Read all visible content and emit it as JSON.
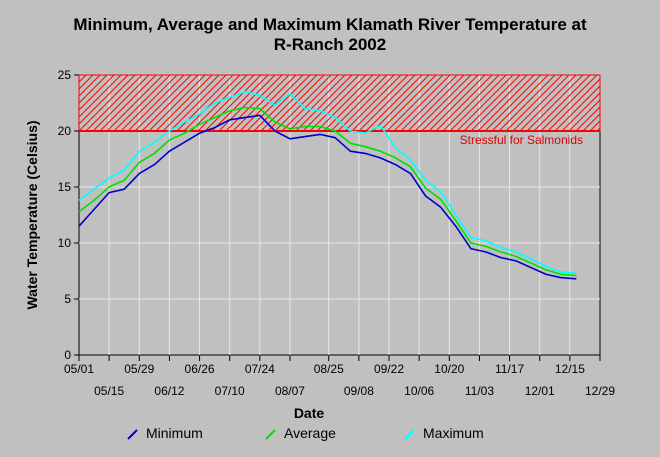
{
  "chart_data": {
    "type": "line",
    "title": "Minimum, Average and Maximum Klamath River Temperature at",
    "subtitle": "R-Ranch 2002",
    "xlabel": "Date",
    "ylabel": "Water Temperature (Celsius)",
    "ylim": [
      0,
      25
    ],
    "yticks": [
      0,
      5,
      10,
      15,
      20,
      25
    ],
    "grid": true,
    "legend_position": "bottom",
    "x_ticks_top": [
      "05/01",
      "05/29",
      "06/26",
      "07/24",
      "08/25",
      "09/22",
      "10/20",
      "11/17",
      "12/15"
    ],
    "x_ticks_bottom": [
      "05/15",
      "06/12",
      "07/10",
      "08/07",
      "09/08",
      "10/06",
      "11/03",
      "12/01",
      "12/29"
    ],
    "threshold": {
      "value": 20,
      "label": "Stressful for Salmonids",
      "color": "#ff0000"
    },
    "x": [
      "05/01",
      "05/08",
      "05/15",
      "05/22",
      "05/29",
      "06/05",
      "06/12",
      "06/19",
      "06/26",
      "07/03",
      "07/10",
      "07/17",
      "07/24",
      "07/31",
      "08/07",
      "08/14",
      "08/21",
      "08/28",
      "09/04",
      "09/11",
      "09/18",
      "09/25",
      "10/02",
      "10/09",
      "10/16",
      "10/23",
      "10/30",
      "11/06",
      "11/13",
      "11/20",
      "11/27",
      "12/04",
      "12/11",
      "12/18"
    ],
    "series": [
      {
        "name": "Minimum",
        "color": "#0000c8",
        "values": [
          11.5,
          13.0,
          14.5,
          14.8,
          16.2,
          17.0,
          18.2,
          19.0,
          19.8,
          20.3,
          21.0,
          21.2,
          21.4,
          20.0,
          19.3,
          19.5,
          19.7,
          19.4,
          18.2,
          18.0,
          17.6,
          17.0,
          16.2,
          14.2,
          13.2,
          11.5,
          9.5,
          9.2,
          8.7,
          8.4,
          7.8,
          7.2,
          6.9,
          6.8
        ]
      },
      {
        "name": "Average",
        "color": "#00e000",
        "values": [
          12.8,
          13.8,
          15.0,
          15.6,
          17.2,
          18.0,
          19.2,
          19.8,
          20.6,
          21.2,
          21.8,
          22.1,
          22.0,
          20.8,
          20.2,
          20.4,
          20.4,
          20.0,
          18.9,
          18.6,
          18.2,
          17.6,
          16.8,
          14.9,
          13.9,
          12.0,
          10.0,
          9.7,
          9.2,
          8.8,
          8.2,
          7.6,
          7.2,
          7.1
        ]
      },
      {
        "name": "Maximum",
        "color": "#00ffff",
        "values": [
          13.8,
          14.8,
          15.8,
          16.5,
          18.2,
          19.0,
          20.0,
          20.8,
          21.5,
          22.5,
          23.0,
          23.5,
          23.2,
          22.3,
          23.3,
          22.0,
          21.8,
          21.2,
          20.0,
          19.8,
          20.5,
          18.5,
          17.4,
          15.6,
          14.6,
          12.5,
          10.5,
          10.2,
          9.6,
          9.2,
          8.6,
          7.9,
          7.4,
          7.3
        ]
      }
    ]
  }
}
